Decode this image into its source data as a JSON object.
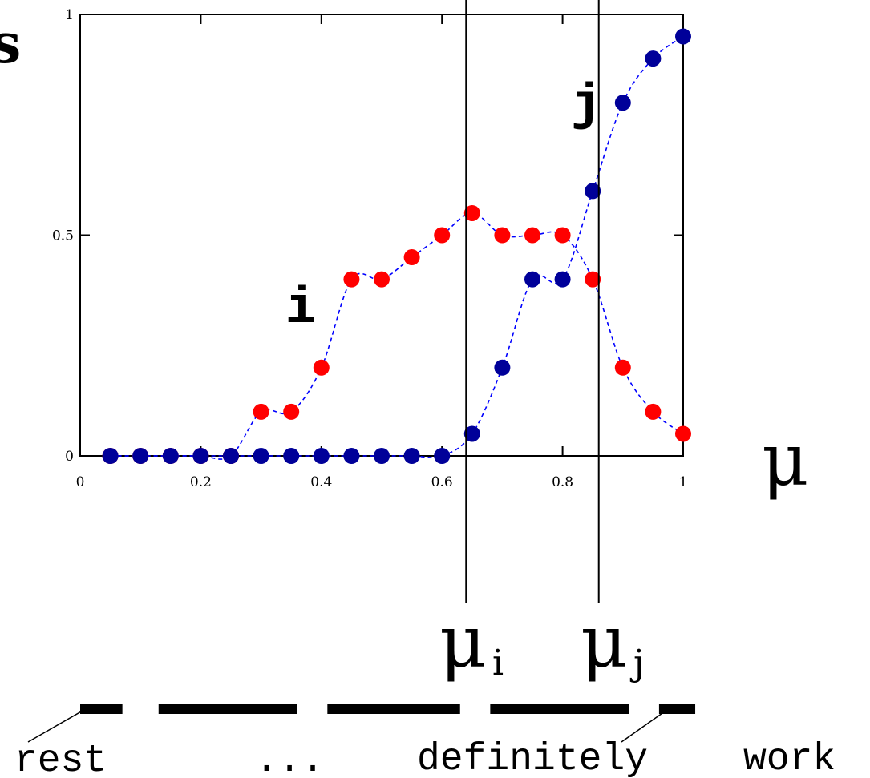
{
  "chart_data": {
    "type": "scatter",
    "xlim": [
      0,
      1
    ],
    "ylim": [
      0,
      1
    ],
    "x_ticks": [
      "0",
      "0.2",
      "0.4",
      "0.6",
      "0.8",
      "1"
    ],
    "y_ticks": [
      "0",
      "0.5",
      "1"
    ],
    "xlabel": "μ",
    "ylabel": "s",
    "grid": false,
    "series": [
      {
        "name": "i",
        "color": "#ff0000",
        "x": [
          0.05,
          0.1,
          0.15,
          0.2,
          0.25,
          0.3,
          0.35,
          0.4,
          0.45,
          0.5,
          0.55,
          0.6,
          0.65,
          0.7,
          0.75,
          0.8,
          0.85,
          0.9,
          0.95,
          1.0
        ],
        "y": [
          0,
          0,
          0,
          0,
          0,
          0.1,
          0.1,
          0.2,
          0.4,
          0.4,
          0.45,
          0.5,
          0.55,
          0.5,
          0.5,
          0.5,
          0.4,
          0.2,
          0.1,
          0.05
        ]
      },
      {
        "name": "j",
        "color": "#000099",
        "x": [
          0.05,
          0.1,
          0.15,
          0.2,
          0.25,
          0.3,
          0.35,
          0.4,
          0.45,
          0.5,
          0.55,
          0.6,
          0.65,
          0.7,
          0.75,
          0.8,
          0.85,
          0.9,
          0.95,
          1.0
        ],
        "y": [
          0,
          0,
          0,
          0,
          0,
          0,
          0,
          0,
          0,
          0,
          0,
          0,
          0.05,
          0.2,
          0.4,
          0.4,
          0.6,
          0.8,
          0.9,
          0.95
        ]
      }
    ],
    "fit_line_color": "#0000ff",
    "thresholds": [
      {
        "label_base": "μ",
        "label_sub": "i",
        "x": 0.64
      },
      {
        "label_base": "μ",
        "label_sub": "j",
        "x": 0.86
      }
    ],
    "bar_segments": [
      [
        0.0,
        0.07
      ],
      [
        0.13,
        0.36
      ],
      [
        0.41,
        0.63
      ],
      [
        0.68,
        0.91
      ],
      [
        0.96,
        1.02
      ]
    ],
    "bottom_labels": {
      "rest": "rest",
      "ellipsis": "...",
      "definitely": "definitely",
      "work": "work"
    }
  }
}
